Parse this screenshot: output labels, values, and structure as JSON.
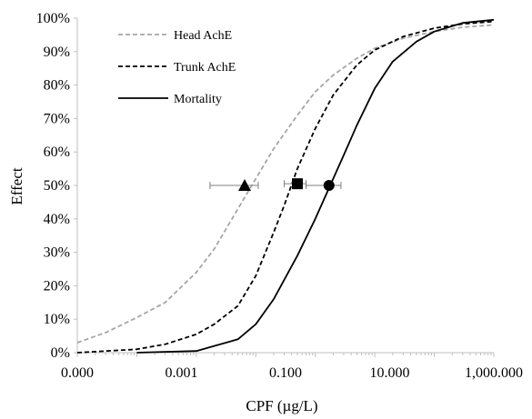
{
  "chart_data": {
    "type": "line",
    "title": "",
    "xlabel": "CPF (µg/L)",
    "ylabel": "Effect",
    "x_scale": "log",
    "xlim": [
      0.0001,
      1000
    ],
    "ylim": [
      0,
      100
    ],
    "x_ticks": [
      0.0001,
      0.01,
      1,
      100
    ],
    "x_tick_labels": [
      "0.000",
      "0.001",
      "0.100",
      "10.000",
      "1,000.000"
    ],
    "x_tick_values": [
      0.0001,
      0.001,
      0.1,
      10,
      1000
    ],
    "y_ticks": [
      0,
      10,
      20,
      30,
      40,
      50,
      60,
      70,
      80,
      90,
      100
    ],
    "y_tick_labels": [
      "0%",
      "10%",
      "20%",
      "30%",
      "40%",
      "50%",
      "60%",
      "70%",
      "80%",
      "90%",
      "100%"
    ],
    "grid": false,
    "legend_position": "top-left",
    "series": [
      {
        "name": "Head AchE",
        "style": "dashed",
        "color": "#a6a6a6",
        "x": [
          0.0001,
          0.0003,
          0.001,
          0.003,
          0.01,
          0.02,
          0.05,
          0.1,
          0.2,
          0.5,
          1,
          2,
          5,
          10,
          30,
          100,
          300,
          1000
        ],
        "y": [
          3,
          6,
          10.5,
          15,
          24,
          31,
          43,
          52,
          61,
          71,
          78,
          83,
          88,
          91,
          94,
          96,
          97.3,
          98
        ]
      },
      {
        "name": "Trunk AchE",
        "style": "dashed",
        "color": "#000000",
        "x": [
          0.0001,
          0.001,
          0.003,
          0.01,
          0.02,
          0.05,
          0.1,
          0.2,
          0.3,
          0.5,
          1,
          2,
          5,
          10,
          30,
          100,
          300,
          1000
        ],
        "y": [
          0,
          1,
          2.5,
          5.5,
          8.5,
          14,
          23,
          36,
          44,
          55,
          67,
          77,
          86,
          90.5,
          94.5,
          97,
          98.3,
          99
        ]
      },
      {
        "name": "Mortality",
        "style": "solid",
        "color": "#000000",
        "x": [
          0.001,
          0.01,
          0.05,
          0.1,
          0.2,
          0.5,
          1,
          2,
          3,
          5,
          10,
          20,
          50,
          100,
          300,
          1000
        ],
        "y": [
          0,
          0.5,
          4,
          8.5,
          16,
          29,
          40,
          52,
          59,
          68,
          79,
          87,
          93,
          96,
          98.6,
          99.5
        ]
      }
    ],
    "ec50_points": [
      {
        "series": "Head AchE",
        "marker": "triangle",
        "x": 0.065,
        "y": 50,
        "xerr": [
          0.017,
          0.11
        ]
      },
      {
        "series": "Trunk AchE",
        "marker": "square",
        "x": 0.5,
        "y": 50.5,
        "xerr": [
          0.3,
          0.7
        ]
      },
      {
        "series": "Mortality",
        "marker": "circle",
        "x": 1.7,
        "y": 50,
        "xerr": [
          0.7,
          2.7
        ]
      }
    ]
  }
}
